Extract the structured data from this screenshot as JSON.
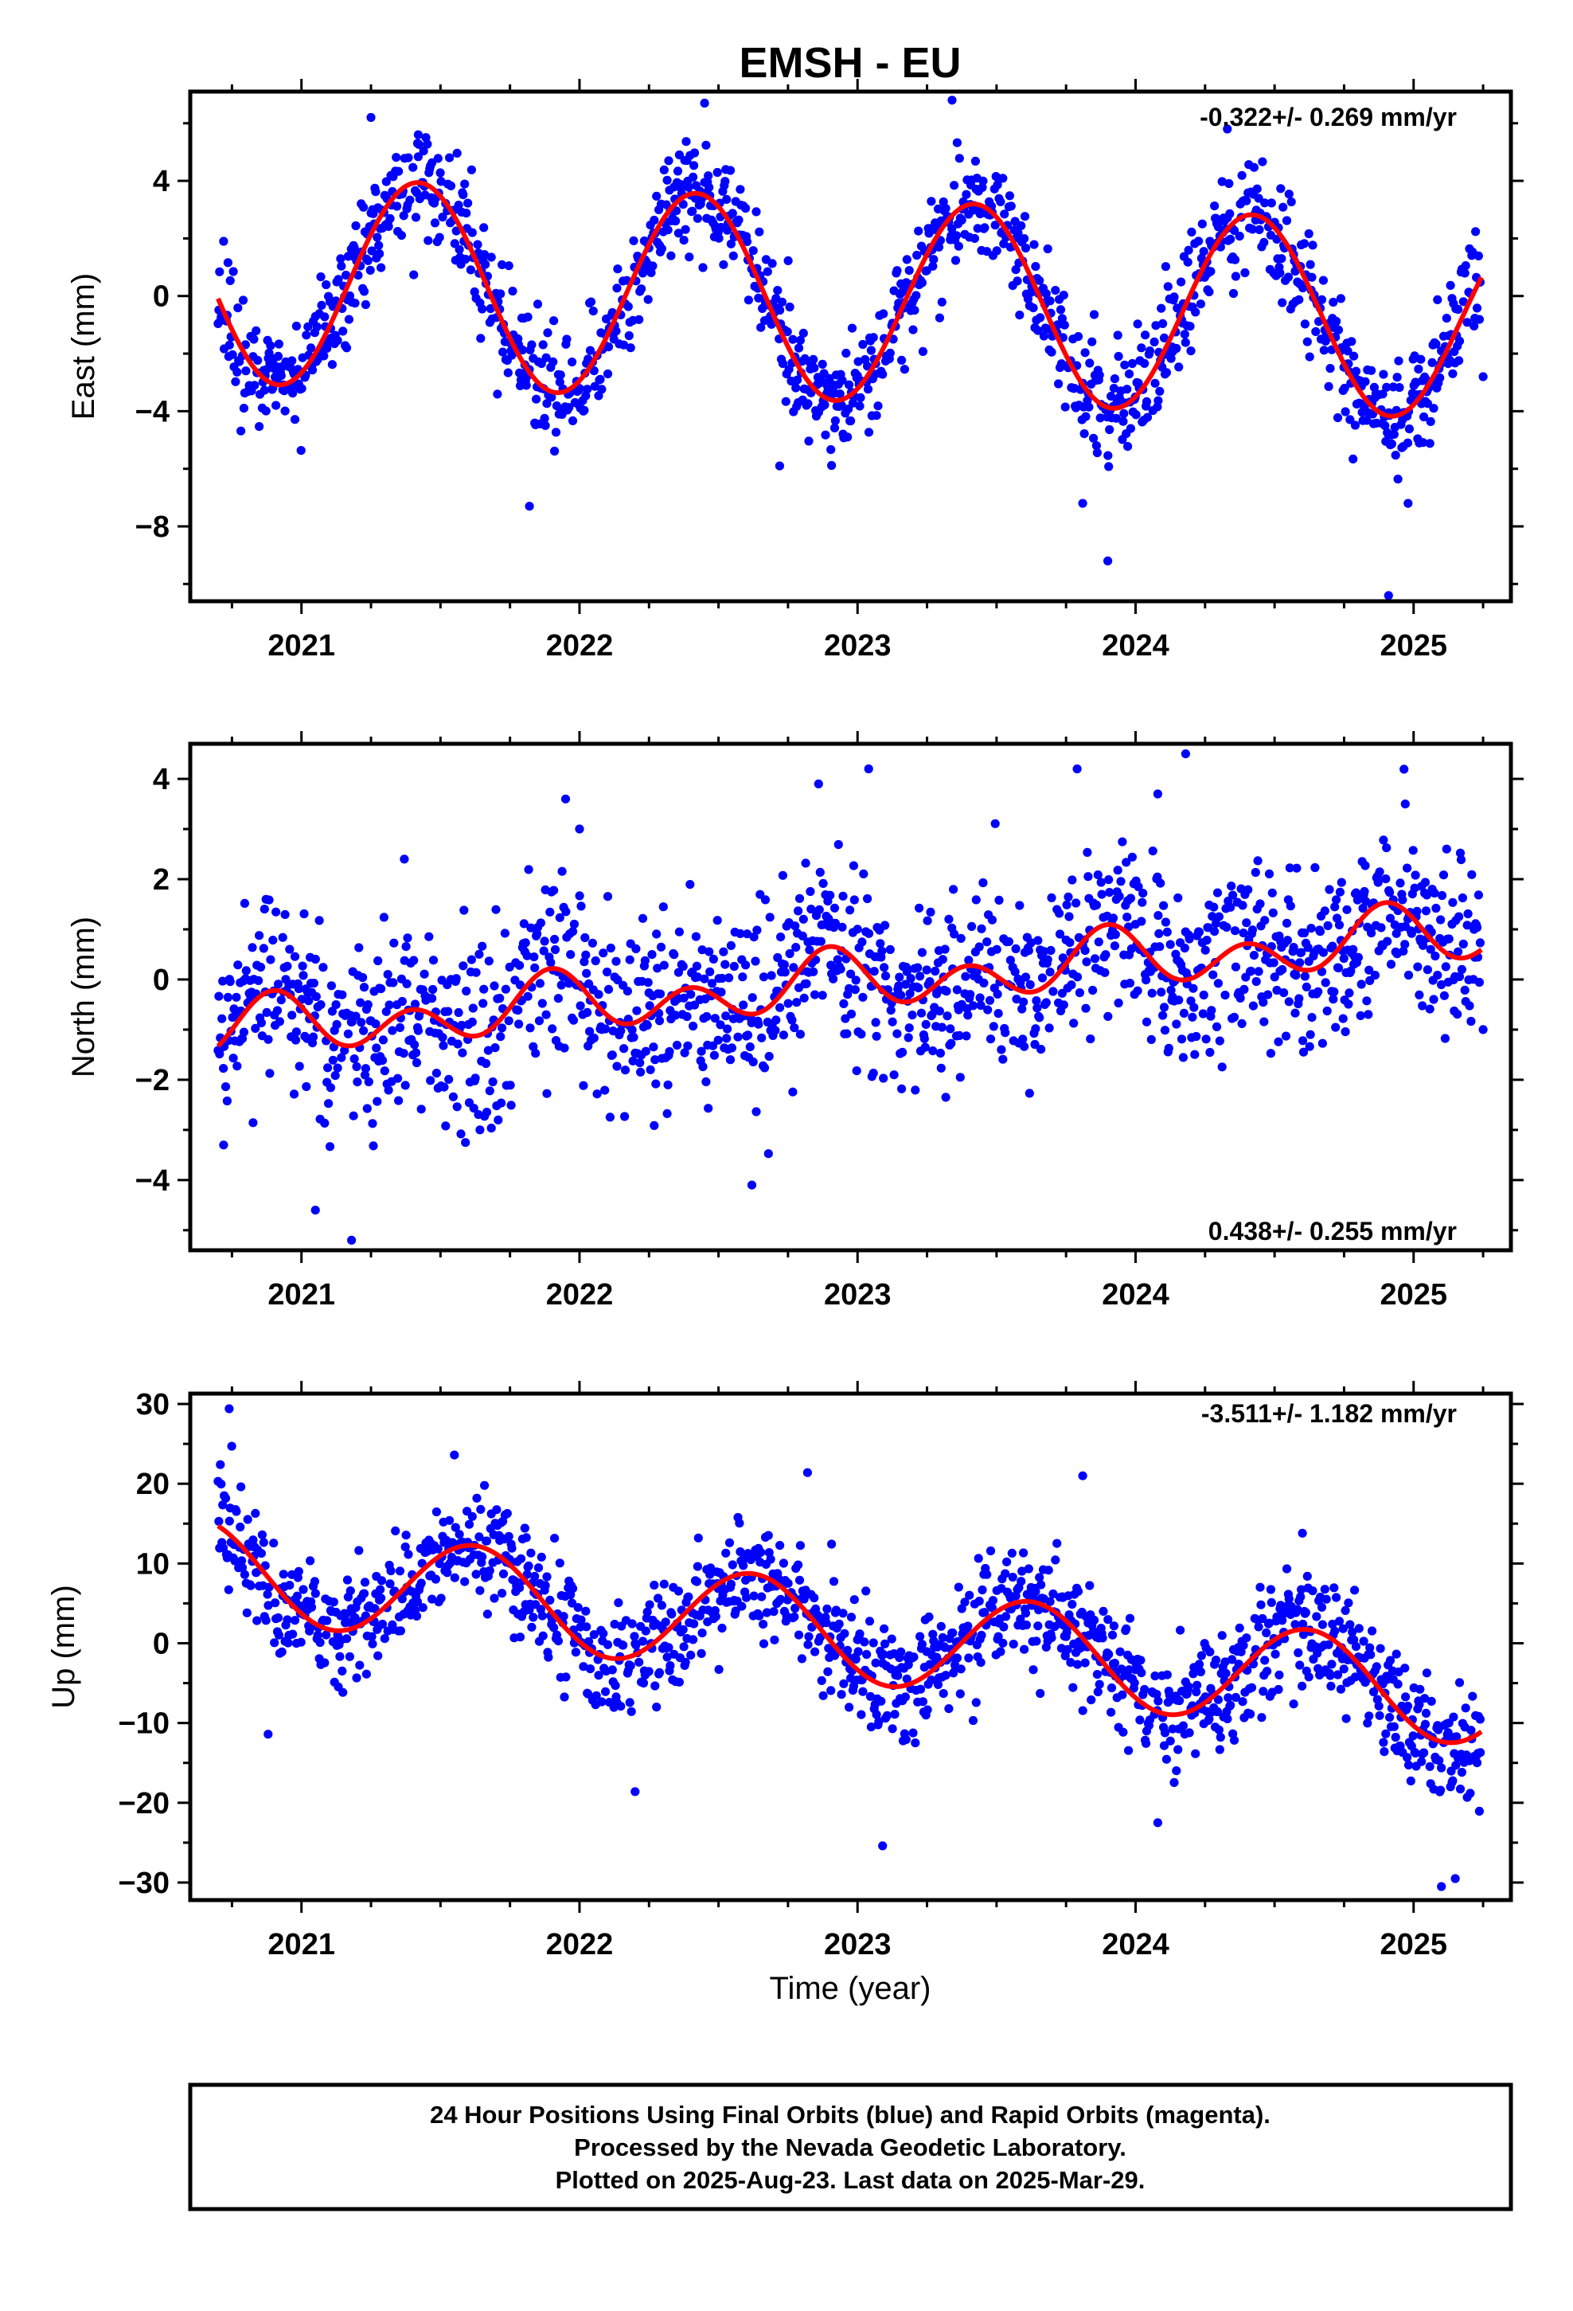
{
  "title": "EMSH - EU",
  "xlabel": "Time (year)",
  "footer": {
    "line1": "24 Hour Positions Using Final Orbits (blue) and Rapid Orbits (magenta).",
    "line2": "Processed by the Nevada Geodetic Laboratory.",
    "line3": "Plotted on 2025-Aug-23. Last data on 2025-Mar-29."
  },
  "colors": {
    "observations": "#0000ff",
    "model": "#ff0000",
    "frame": "#000000"
  },
  "chart_data": [
    {
      "type": "scatter",
      "ylabel": "East (mm)",
      "rate": "-0.322+/- 0.269 mm/yr",
      "xlim": [
        2020.6,
        2025.35
      ],
      "ylim": [
        -10.6,
        7.1
      ],
      "xticks": [
        2021,
        2022,
        2023,
        2024,
        2025
      ],
      "yticks": [
        4,
        0,
        -4,
        -8
      ],
      "ytick_labels": [
        "4",
        "0",
        "−4",
        "−8"
      ],
      "grid": false,
      "model": {
        "offset": -0.15,
        "trend": -0.322,
        "t0": 2023.0,
        "ann_amp": 3.5,
        "ann_peak": 2021.42,
        "ann_amp_growth": -0.05,
        "semi_amp": 0.0,
        "semi_peak": 2021.0,
        "noise_sd": 0.95
      },
      "series": [
        {
          "values": [
            [
              2020.72,
              1.9
            ],
            [
              2020.8,
              -2.6
            ],
            [
              2021.25,
              6.2
            ],
            [
              2021.42,
              5.6
            ],
            [
              2021.82,
              -7.3
            ],
            [
              2022.45,
              6.7
            ],
            [
              2022.72,
              -5.9
            ],
            [
              2023.34,
              6.8
            ],
            [
              2023.81,
              -7.2
            ],
            [
              2023.9,
              -9.2
            ],
            [
              2024.33,
              5.8
            ],
            [
              2024.91,
              -10.4
            ],
            [
              2024.98,
              -7.2
            ],
            [
              2025.25,
              -2.8
            ]
          ]
        }
      ]
    },
    {
      "type": "scatter",
      "ylabel": "North (mm)",
      "rate": "0.438+/- 0.255 mm/yr",
      "xlim": [
        2020.6,
        2025.35
      ],
      "ylim": [
        -5.4,
        4.7
      ],
      "xticks": [
        2021,
        2022,
        2023,
        2024,
        2025
      ],
      "yticks": [
        4,
        2,
        0,
        -2,
        -4
      ],
      "ytick_labels": [
        "4",
        "2",
        "0",
        "−2",
        "−4"
      ],
      "grid": false,
      "model": {
        "offset": -0.05,
        "trend": 0.438,
        "t0": 2023.0,
        "ann_amp": 0.3,
        "ann_peak": 2020.9,
        "ann_amp_growth": 0.0,
        "semi_amp": 0.45,
        "semi_peak": 2020.9,
        "noise_sd": 0.95
      },
      "series": [
        {
          "values": [
            [
              2020.72,
              -3.3
            ],
            [
              2021.05,
              -4.6
            ],
            [
              2021.18,
              -5.2
            ],
            [
              2021.37,
              2.4
            ],
            [
              2021.95,
              3.6
            ],
            [
              2022.0,
              3.0
            ],
            [
              2022.62,
              -4.1
            ],
            [
              2022.86,
              3.9
            ],
            [
              2023.04,
              4.2
            ],
            [
              2023.79,
              4.2
            ],
            [
              2024.08,
              3.7
            ],
            [
              2024.18,
              4.5
            ],
            [
              2024.97,
              3.5
            ],
            [
              2025.25,
              -1.0
            ]
          ]
        }
      ]
    },
    {
      "type": "scatter",
      "ylabel": "Up (mm)",
      "rate": "-3.511+/- 1.182 mm/yr",
      "xlim": [
        2020.6,
        2025.35
      ],
      "ylim": [
        -32.2,
        31.3
      ],
      "xticks": [
        2021,
        2022,
        2023,
        2024,
        2025
      ],
      "yticks": [
        30,
        20,
        10,
        0,
        -10,
        -20,
        -30
      ],
      "ytick_labels": [
        "30",
        "20",
        "10",
        "0",
        "−10",
        "−20",
        "−30"
      ],
      "grid": false,
      "model": {
        "offset": 1.2,
        "trend": -3.511,
        "t0": 2023.0,
        "ann_amp": 6.2,
        "ann_peak": 2021.62,
        "ann_amp_growth": 0.0,
        "semi_amp": 0.0,
        "semi_peak": 2021.0,
        "noise_sd": 3.6
      },
      "series": [
        {
          "values": [
            [
              2020.74,
              29.4
            ],
            [
              2020.88,
              -11.4
            ],
            [
              2021.55,
              23.6
            ],
            [
              2022.2,
              -18.6
            ],
            [
              2022.82,
              21.4
            ],
            [
              2023.09,
              -25.4
            ],
            [
              2023.81,
              21.0
            ],
            [
              2024.08,
              -22.5
            ],
            [
              2024.6,
              13.8
            ],
            [
              2025.1,
              -30.5
            ],
            [
              2025.15,
              -29.5
            ],
            [
              2025.24,
              -13.7
            ]
          ]
        }
      ]
    }
  ]
}
